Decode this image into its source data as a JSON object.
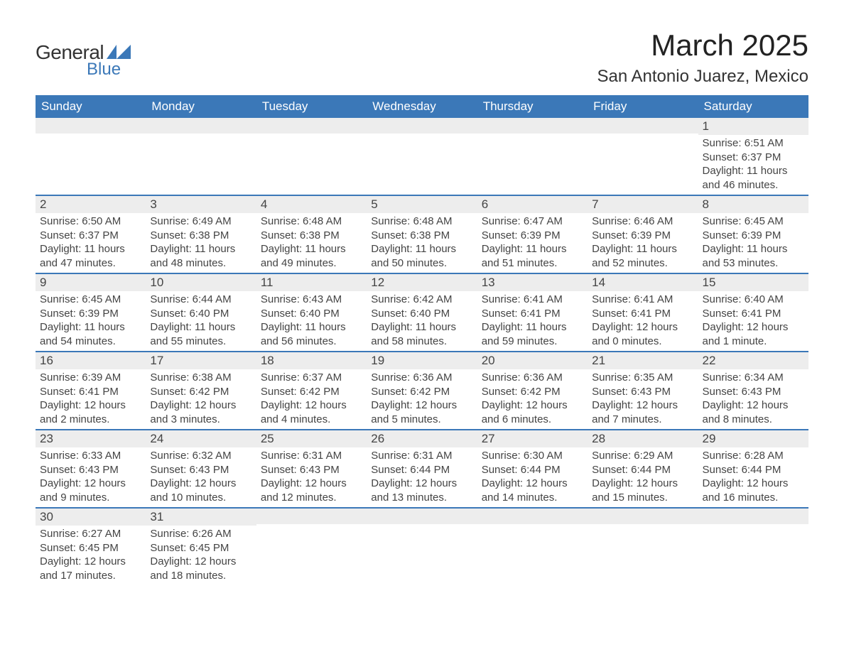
{
  "logo": {
    "text_general": "General",
    "text_blue": "Blue",
    "shape_color": "#3b78b8"
  },
  "title": "March 2025",
  "location": "San Antonio Juarez, Mexico",
  "colors": {
    "header_bg": "#3b78b8",
    "header_text": "#ffffff",
    "daynum_bg": "#ededed",
    "border": "#3b78b8",
    "body_text": "#444444",
    "page_bg": "#ffffff"
  },
  "fonts": {
    "title_size_pt": 42,
    "location_size_pt": 24,
    "header_size_pt": 17,
    "daynum_size_pt": 17,
    "body_size_pt": 15
  },
  "day_headers": [
    "Sunday",
    "Monday",
    "Tuesday",
    "Wednesday",
    "Thursday",
    "Friday",
    "Saturday"
  ],
  "labels": {
    "sunrise": "Sunrise:",
    "sunset": "Sunset:",
    "daylight": "Daylight:"
  },
  "weeks": [
    [
      null,
      null,
      null,
      null,
      null,
      null,
      {
        "n": "1",
        "sunrise": "6:51 AM",
        "sunset": "6:37 PM",
        "daylight": "11 hours and 46 minutes."
      }
    ],
    [
      {
        "n": "2",
        "sunrise": "6:50 AM",
        "sunset": "6:37 PM",
        "daylight": "11 hours and 47 minutes."
      },
      {
        "n": "3",
        "sunrise": "6:49 AM",
        "sunset": "6:38 PM",
        "daylight": "11 hours and 48 minutes."
      },
      {
        "n": "4",
        "sunrise": "6:48 AM",
        "sunset": "6:38 PM",
        "daylight": "11 hours and 49 minutes."
      },
      {
        "n": "5",
        "sunrise": "6:48 AM",
        "sunset": "6:38 PM",
        "daylight": "11 hours and 50 minutes."
      },
      {
        "n": "6",
        "sunrise": "6:47 AM",
        "sunset": "6:39 PM",
        "daylight": "11 hours and 51 minutes."
      },
      {
        "n": "7",
        "sunrise": "6:46 AM",
        "sunset": "6:39 PM",
        "daylight": "11 hours and 52 minutes."
      },
      {
        "n": "8",
        "sunrise": "6:45 AM",
        "sunset": "6:39 PM",
        "daylight": "11 hours and 53 minutes."
      }
    ],
    [
      {
        "n": "9",
        "sunrise": "6:45 AM",
        "sunset": "6:39 PM",
        "daylight": "11 hours and 54 minutes."
      },
      {
        "n": "10",
        "sunrise": "6:44 AM",
        "sunset": "6:40 PM",
        "daylight": "11 hours and 55 minutes."
      },
      {
        "n": "11",
        "sunrise": "6:43 AM",
        "sunset": "6:40 PM",
        "daylight": "11 hours and 56 minutes."
      },
      {
        "n": "12",
        "sunrise": "6:42 AM",
        "sunset": "6:40 PM",
        "daylight": "11 hours and 58 minutes."
      },
      {
        "n": "13",
        "sunrise": "6:41 AM",
        "sunset": "6:41 PM",
        "daylight": "11 hours and 59 minutes."
      },
      {
        "n": "14",
        "sunrise": "6:41 AM",
        "sunset": "6:41 PM",
        "daylight": "12 hours and 0 minutes."
      },
      {
        "n": "15",
        "sunrise": "6:40 AM",
        "sunset": "6:41 PM",
        "daylight": "12 hours and 1 minute."
      }
    ],
    [
      {
        "n": "16",
        "sunrise": "6:39 AM",
        "sunset": "6:41 PM",
        "daylight": "12 hours and 2 minutes."
      },
      {
        "n": "17",
        "sunrise": "6:38 AM",
        "sunset": "6:42 PM",
        "daylight": "12 hours and 3 minutes."
      },
      {
        "n": "18",
        "sunrise": "6:37 AM",
        "sunset": "6:42 PM",
        "daylight": "12 hours and 4 minutes."
      },
      {
        "n": "19",
        "sunrise": "6:36 AM",
        "sunset": "6:42 PM",
        "daylight": "12 hours and 5 minutes."
      },
      {
        "n": "20",
        "sunrise": "6:36 AM",
        "sunset": "6:42 PM",
        "daylight": "12 hours and 6 minutes."
      },
      {
        "n": "21",
        "sunrise": "6:35 AM",
        "sunset": "6:43 PM",
        "daylight": "12 hours and 7 minutes."
      },
      {
        "n": "22",
        "sunrise": "6:34 AM",
        "sunset": "6:43 PM",
        "daylight": "12 hours and 8 minutes."
      }
    ],
    [
      {
        "n": "23",
        "sunrise": "6:33 AM",
        "sunset": "6:43 PM",
        "daylight": "12 hours and 9 minutes."
      },
      {
        "n": "24",
        "sunrise": "6:32 AM",
        "sunset": "6:43 PM",
        "daylight": "12 hours and 10 minutes."
      },
      {
        "n": "25",
        "sunrise": "6:31 AM",
        "sunset": "6:43 PM",
        "daylight": "12 hours and 12 minutes."
      },
      {
        "n": "26",
        "sunrise": "6:31 AM",
        "sunset": "6:44 PM",
        "daylight": "12 hours and 13 minutes."
      },
      {
        "n": "27",
        "sunrise": "6:30 AM",
        "sunset": "6:44 PM",
        "daylight": "12 hours and 14 minutes."
      },
      {
        "n": "28",
        "sunrise": "6:29 AM",
        "sunset": "6:44 PM",
        "daylight": "12 hours and 15 minutes."
      },
      {
        "n": "29",
        "sunrise": "6:28 AM",
        "sunset": "6:44 PM",
        "daylight": "12 hours and 16 minutes."
      }
    ],
    [
      {
        "n": "30",
        "sunrise": "6:27 AM",
        "sunset": "6:45 PM",
        "daylight": "12 hours and 17 minutes."
      },
      {
        "n": "31",
        "sunrise": "6:26 AM",
        "sunset": "6:45 PM",
        "daylight": "12 hours and 18 minutes."
      },
      null,
      null,
      null,
      null,
      null
    ]
  ]
}
